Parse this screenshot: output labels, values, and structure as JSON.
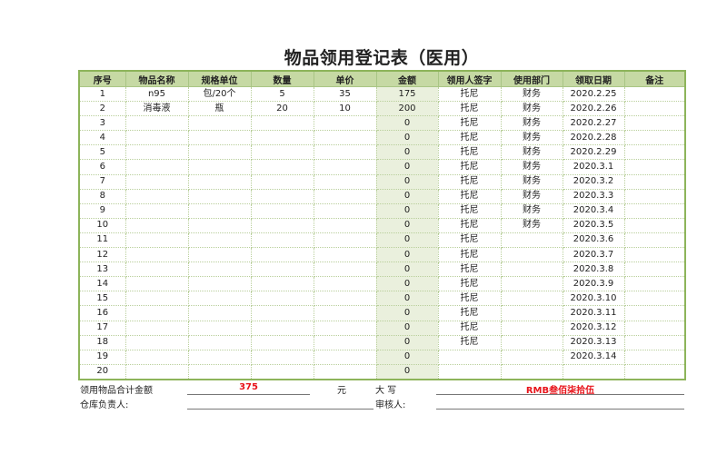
{
  "title": "物品领用登记表（医用）",
  "columns": [
    "序号",
    "物品名称",
    "规格单位",
    "数量",
    "单价",
    "金额",
    "领用人签字",
    "使用部门",
    "领取日期",
    "备注"
  ],
  "rows": [
    [
      "1",
      "n95",
      "包/20个",
      "5",
      "35",
      "175",
      "托尼",
      "财务",
      "2020.2.25",
      ""
    ],
    [
      "2",
      "消毒液",
      "瓶",
      "20",
      "10",
      "200",
      "托尼",
      "财务",
      "2020.2.26",
      ""
    ],
    [
      "3",
      "",
      "",
      "",
      "",
      "0",
      "托尼",
      "财务",
      "2020.2.27",
      ""
    ],
    [
      "4",
      "",
      "",
      "",
      "",
      "0",
      "托尼",
      "财务",
      "2020.2.28",
      ""
    ],
    [
      "5",
      "",
      "",
      "",
      "",
      "0",
      "托尼",
      "财务",
      "2020.2.29",
      ""
    ],
    [
      "6",
      "",
      "",
      "",
      "",
      "0",
      "托尼",
      "财务",
      "2020.3.1",
      ""
    ],
    [
      "7",
      "",
      "",
      "",
      "",
      "0",
      "托尼",
      "财务",
      "2020.3.2",
      ""
    ],
    [
      "8",
      "",
      "",
      "",
      "",
      "0",
      "托尼",
      "财务",
      "2020.3.3",
      ""
    ],
    [
      "9",
      "",
      "",
      "",
      "",
      "0",
      "托尼",
      "财务",
      "2020.3.4",
      ""
    ],
    [
      "10",
      "",
      "",
      "",
      "",
      "0",
      "托尼",
      "财务",
      "2020.3.5",
      ""
    ],
    [
      "11",
      "",
      "",
      "",
      "",
      "0",
      "托尼",
      "",
      "2020.3.6",
      ""
    ],
    [
      "12",
      "",
      "",
      "",
      "",
      "0",
      "托尼",
      "",
      "2020.3.7",
      ""
    ],
    [
      "13",
      "",
      "",
      "",
      "",
      "0",
      "托尼",
      "",
      "2020.3.8",
      ""
    ],
    [
      "14",
      "",
      "",
      "",
      "",
      "0",
      "托尼",
      "",
      "2020.3.9",
      ""
    ],
    [
      "15",
      "",
      "",
      "",
      "",
      "0",
      "托尼",
      "",
      "2020.3.10",
      ""
    ],
    [
      "16",
      "",
      "",
      "",
      "",
      "0",
      "托尼",
      "",
      "2020.3.11",
      ""
    ],
    [
      "17",
      "",
      "",
      "",
      "",
      "0",
      "托尼",
      "",
      "2020.3.12",
      ""
    ],
    [
      "18",
      "",
      "",
      "",
      "",
      "0",
      "托尼",
      "",
      "2020.3.13",
      ""
    ],
    [
      "19",
      "",
      "",
      "",
      "",
      "0",
      "",
      "",
      "2020.3.14",
      ""
    ],
    [
      "20",
      "",
      "",
      "",
      "",
      "0",
      "",
      "",
      "",
      ""
    ]
  ],
  "footer": {
    "total_label": "领用物品合计金额",
    "total_value": "375",
    "unit": "元",
    "capital_label": "大 写",
    "capital_value": "RMB叁佰柒拾伍",
    "warehouse_label": "仓库负责人:",
    "reviewer_label": "审核人:"
  },
  "colors": {
    "header_bg": "#c6d9a4",
    "amount_bg": "#eaf0dd",
    "border": "#8db45a",
    "highlight": "#e8141b"
  }
}
